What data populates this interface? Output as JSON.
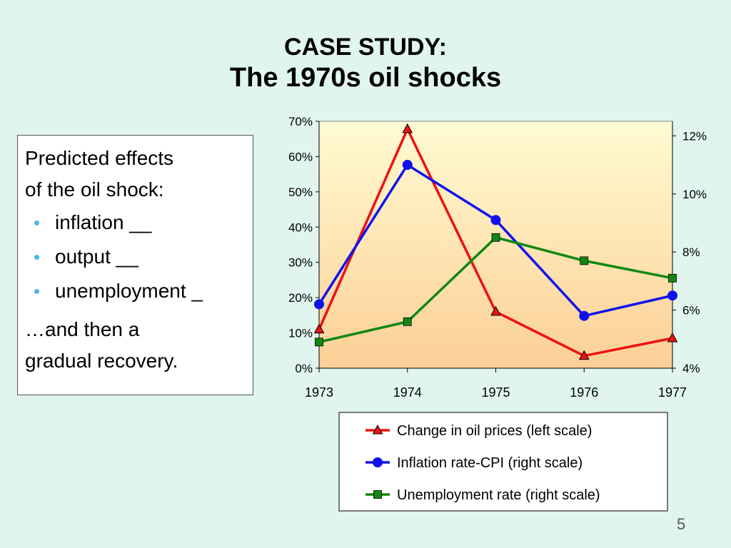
{
  "slide": {
    "title_line1": "CASE STUDY:",
    "title_line2": "The 1970s oil shocks",
    "page_number": "5"
  },
  "textbox": {
    "heading_line1": "Predicted effects",
    "heading_line2": "of the oil shock:",
    "bullets": [
      "inflation __",
      "output __",
      "unemployment _"
    ],
    "after_line1": "…and then a",
    "after_line2": "gradual recovery."
  },
  "colors": {
    "oil": "#ee1111",
    "inflation": "#1111ee",
    "unemployment": "#118811",
    "plot_top": "#fffbd2",
    "plot_bottom": "#fccf96",
    "bullet": "#4fb3e8"
  },
  "chart_data": {
    "type": "line",
    "title": "",
    "x": [
      "1973",
      "1974",
      "1975",
      "1976",
      "1977"
    ],
    "left_axis": {
      "ylim": [
        0,
        70
      ],
      "ticks": [
        "0%",
        "10%",
        "20%",
        "30%",
        "40%",
        "50%",
        "60%",
        "70%"
      ]
    },
    "right_axis": {
      "ylim": [
        4,
        12.5
      ],
      "ticks": [
        "4%",
        "6%",
        "8%",
        "10%",
        "12%"
      ]
    },
    "series": [
      {
        "name": "Change in oil prices (left scale)",
        "axis": "left",
        "marker": "triangle",
        "color": "#ee1111",
        "values": [
          11.0,
          67.8,
          16.0,
          3.5,
          8.5
        ]
      },
      {
        "name": "Inflation rate-CPI (right scale)",
        "axis": "right",
        "marker": "circle",
        "color": "#1111ee",
        "values": [
          6.2,
          11.0,
          9.1,
          5.8,
          6.5
        ]
      },
      {
        "name": "Unemployment rate (right scale)",
        "axis": "right",
        "marker": "square",
        "color": "#118811",
        "values": [
          4.9,
          5.6,
          8.5,
          7.7,
          7.1
        ]
      }
    ],
    "grid": false,
    "legend_position": "bottom-right"
  }
}
